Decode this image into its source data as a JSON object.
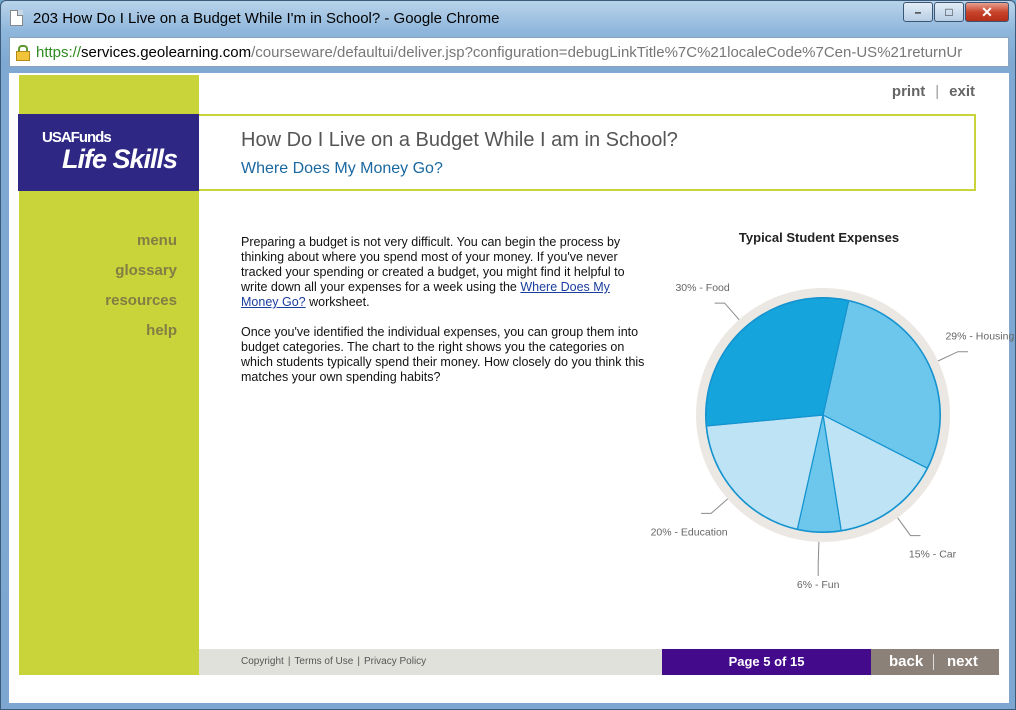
{
  "window": {
    "title": "203 How Do I Live on a Budget While I'm in School? - Google Chrome",
    "controls": {
      "minimize": "–",
      "maximize": "□",
      "close": "✕"
    }
  },
  "address": {
    "scheme": "https://",
    "host": "services.geolearning.com",
    "path": "/courseware/defaultui/deliver.jsp?configuration=debugLinkTitle%7C%21localeCode%7Cen-US%21returnUr"
  },
  "brand": {
    "line1": "USAFunds",
    "line2": "Life Skills"
  },
  "toplinks": {
    "print": "print",
    "separator": "|",
    "exit": "exit"
  },
  "header": {
    "title": "How Do I Live on a Budget While I am in School?",
    "subtitle": "Where Does My Money Go?"
  },
  "nav": {
    "items": [
      "menu",
      "glossary",
      "resources",
      "help"
    ]
  },
  "content": {
    "p1_before": "Preparing a budget is not very difficult. You can begin the process by thinking about where you spend most of your money. If you've never tracked your spending or created a budget, you might find it helpful to write down all your expenses for a week using the ",
    "p1_link": "Where Does My Money Go?",
    "p1_after": " worksheet.",
    "p2": "Once you've identified the individual expenses, you can group them into budget categories. The chart to the right shows you the categories on which students typically spend their money. How closely do you think this matches your own spending habits?"
  },
  "chart_data": {
    "type": "pie",
    "title": "Typical Student Expenses",
    "slices": [
      {
        "label": "29% - Housing",
        "value": 29,
        "color": "#6dc6ec"
      },
      {
        "label": "15% - Car",
        "value": 15,
        "color": "#bde3f5"
      },
      {
        "label": "6% - Fun",
        "value": 6,
        "color": "#6dc6ec"
      },
      {
        "label": "20% - Education",
        "value": 20,
        "color": "#bde3f5"
      },
      {
        "label": "30% - Food",
        "value": 30,
        "color": "#15a4dc"
      }
    ]
  },
  "footer": {
    "links": [
      "Copyright",
      "Terms of Use",
      "Privacy Policy"
    ],
    "separator": "|",
    "page_indicator": "Page 5 of 15",
    "back": "back",
    "next": "next"
  }
}
